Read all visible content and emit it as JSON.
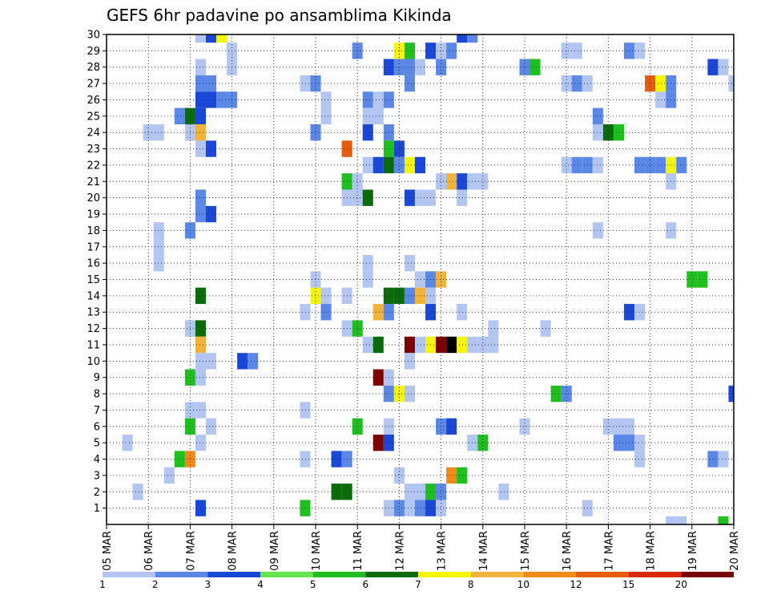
{
  "chart_data": {
    "type": "heatmap",
    "title": "GEFS 6hr padavine po ansamblima Kikinda",
    "xlabel": "",
    "ylabel": "",
    "x_ticks": [
      "05 MAR",
      "06 MAR",
      "07 MAR",
      "08 MAR",
      "09 MAR",
      "10 MAR",
      "11 MAR",
      "12 MAR",
      "13 MAR",
      "14 MAR",
      "15 MAR",
      "16 MAR",
      "17 MAR",
      "18 MAR",
      "19 MAR",
      "20 MAR"
    ],
    "y_ticks": [
      1,
      2,
      3,
      4,
      5,
      6,
      7,
      8,
      9,
      10,
      11,
      12,
      13,
      14,
      15,
      16,
      17,
      18,
      19,
      20,
      21,
      22,
      23,
      24,
      25,
      26,
      27,
      28,
      29,
      30
    ],
    "xlim_steps": [
      0,
      60
    ],
    "ylim": [
      0,
      30
    ],
    "grid": true,
    "colorbar": {
      "labels": [
        "1",
        "2",
        "3",
        "4",
        "5",
        "6",
        "7",
        "8",
        "10",
        "12",
        "15",
        "20"
      ],
      "colors": [
        "#b3c6f2",
        "#5b87e6",
        "#1a47d6",
        "#66e64d",
        "#1ebf1e",
        "#0a6b0a",
        "#f5f50a",
        "#f2b33d",
        "#f28a1a",
        "#e65c0a",
        "#d92b0a",
        "#7a0000"
      ]
    },
    "cells": [
      [
        9,
        30,
        1
      ],
      [
        10,
        30,
        3
      ],
      [
        11,
        30,
        7
      ],
      [
        34,
        30,
        3
      ],
      [
        35,
        30,
        2
      ],
      [
        12,
        29,
        1
      ],
      [
        24,
        29,
        2
      ],
      [
        28,
        29,
        7
      ],
      [
        29,
        29,
        5
      ],
      [
        31,
        29,
        3
      ],
      [
        32,
        29,
        1
      ],
      [
        33,
        29,
        2
      ],
      [
        44,
        29,
        1
      ],
      [
        45,
        29,
        1
      ],
      [
        50,
        29,
        2
      ],
      [
        51,
        29,
        1
      ],
      [
        9,
        28,
        1
      ],
      [
        12,
        28,
        1
      ],
      [
        27,
        28,
        3
      ],
      [
        28,
        28,
        2
      ],
      [
        29,
        28,
        2
      ],
      [
        30,
        28,
        1
      ],
      [
        32,
        28,
        2
      ],
      [
        40,
        28,
        2
      ],
      [
        41,
        28,
        5
      ],
      [
        58,
        28,
        3
      ],
      [
        59,
        28,
        1
      ],
      [
        9,
        27,
        2
      ],
      [
        10,
        27,
        2
      ],
      [
        19,
        27,
        1
      ],
      [
        20,
        27,
        2
      ],
      [
        29,
        27,
        2
      ],
      [
        44,
        27,
        1
      ],
      [
        45,
        27,
        2
      ],
      [
        46,
        27,
        1
      ],
      [
        52,
        27,
        10
      ],
      [
        53,
        27,
        7
      ],
      [
        54,
        27,
        2
      ],
      [
        60,
        27,
        1
      ],
      [
        9,
        26,
        3
      ],
      [
        10,
        26,
        3
      ],
      [
        11,
        26,
        2
      ],
      [
        12,
        26,
        2
      ],
      [
        21,
        26,
        1
      ],
      [
        25,
        26,
        2
      ],
      [
        26,
        26,
        1
      ],
      [
        27,
        26,
        2
      ],
      [
        53,
        26,
        1
      ],
      [
        54,
        26,
        2
      ],
      [
        7,
        25,
        2
      ],
      [
        8,
        25,
        6
      ],
      [
        9,
        25,
        3
      ],
      [
        21,
        25,
        1
      ],
      [
        25,
        25,
        1
      ],
      [
        26,
        25,
        1
      ],
      [
        47,
        25,
        2
      ],
      [
        4,
        24,
        1
      ],
      [
        5,
        24,
        1
      ],
      [
        8,
        24,
        1
      ],
      [
        9,
        24,
        8
      ],
      [
        20,
        24,
        2
      ],
      [
        25,
        24,
        3
      ],
      [
        27,
        24,
        2
      ],
      [
        47,
        24,
        1
      ],
      [
        48,
        24,
        6
      ],
      [
        49,
        24,
        5
      ],
      [
        9,
        23,
        1
      ],
      [
        10,
        23,
        3
      ],
      [
        23,
        23,
        10
      ],
      [
        27,
        23,
        5
      ],
      [
        28,
        23,
        3
      ],
      [
        25,
        22,
        1
      ],
      [
        26,
        22,
        3
      ],
      [
        27,
        22,
        6
      ],
      [
        28,
        22,
        2
      ],
      [
        29,
        22,
        7
      ],
      [
        30,
        22,
        3
      ],
      [
        44,
        22,
        1
      ],
      [
        45,
        22,
        2
      ],
      [
        46,
        22,
        2
      ],
      [
        47,
        22,
        1
      ],
      [
        51,
        22,
        2
      ],
      [
        52,
        22,
        2
      ],
      [
        53,
        22,
        2
      ],
      [
        54,
        22,
        7
      ],
      [
        55,
        22,
        2
      ],
      [
        23,
        21,
        5
      ],
      [
        24,
        21,
        1
      ],
      [
        32,
        21,
        1
      ],
      [
        33,
        21,
        8
      ],
      [
        34,
        21,
        3
      ],
      [
        35,
        21,
        1
      ],
      [
        36,
        21,
        1
      ],
      [
        54,
        21,
        1
      ],
      [
        9,
        20,
        2
      ],
      [
        23,
        20,
        1
      ],
      [
        24,
        20,
        1
      ],
      [
        25,
        20,
        6
      ],
      [
        29,
        20,
        3
      ],
      [
        30,
        20,
        1
      ],
      [
        31,
        20,
        1
      ],
      [
        34,
        20,
        1
      ],
      [
        9,
        19,
        2
      ],
      [
        10,
        19,
        3
      ],
      [
        5,
        18,
        1
      ],
      [
        8,
        18,
        2
      ],
      [
        47,
        18,
        1
      ],
      [
        54,
        18,
        1
      ],
      [
        5,
        17,
        1
      ],
      [
        5,
        16,
        1
      ],
      [
        25,
        16,
        1
      ],
      [
        29,
        16,
        1
      ],
      [
        20,
        15,
        1
      ],
      [
        25,
        15,
        1
      ],
      [
        30,
        15,
        1
      ],
      [
        31,
        15,
        2
      ],
      [
        32,
        15,
        8
      ],
      [
        56,
        15,
        5
      ],
      [
        57,
        15,
        5
      ],
      [
        9,
        14,
        6
      ],
      [
        20,
        14,
        7
      ],
      [
        21,
        14,
        1
      ],
      [
        23,
        14,
        1
      ],
      [
        27,
        14,
        6
      ],
      [
        28,
        14,
        6
      ],
      [
        29,
        14,
        2
      ],
      [
        30,
        14,
        8
      ],
      [
        31,
        14,
        1
      ],
      [
        19,
        13,
        1
      ],
      [
        21,
        13,
        2
      ],
      [
        26,
        13,
        8
      ],
      [
        27,
        13,
        2
      ],
      [
        31,
        13,
        3
      ],
      [
        34,
        13,
        1
      ],
      [
        50,
        13,
        3
      ],
      [
        51,
        13,
        1
      ],
      [
        8,
        12,
        1
      ],
      [
        9,
        12,
        6
      ],
      [
        23,
        12,
        1
      ],
      [
        24,
        12,
        5
      ],
      [
        37,
        12,
        1
      ],
      [
        42,
        12,
        1
      ],
      [
        9,
        11,
        8
      ],
      [
        25,
        11,
        1
      ],
      [
        26,
        11,
        6
      ],
      [
        29,
        11,
        12
      ],
      [
        30,
        11,
        1
      ],
      [
        31,
        11,
        7
      ],
      [
        32,
        11,
        12
      ],
      [
        33,
        11,
        20
      ],
      [
        34,
        11,
        7
      ],
      [
        35,
        11,
        1
      ],
      [
        36,
        11,
        1
      ],
      [
        37,
        11,
        1
      ],
      [
        9,
        10,
        1
      ],
      [
        10,
        10,
        1
      ],
      [
        13,
        10,
        3
      ],
      [
        14,
        10,
        2
      ],
      [
        29,
        10,
        1
      ],
      [
        8,
        9,
        5
      ],
      [
        9,
        9,
        1
      ],
      [
        26,
        9,
        12
      ],
      [
        27,
        9,
        1
      ],
      [
        27,
        8,
        2
      ],
      [
        28,
        8,
        7
      ],
      [
        29,
        8,
        1
      ],
      [
        43,
        8,
        5
      ],
      [
        44,
        8,
        2
      ],
      [
        60,
        8,
        3
      ],
      [
        8,
        7,
        1
      ],
      [
        9,
        7,
        1
      ],
      [
        19,
        7,
        1
      ],
      [
        8,
        6,
        5
      ],
      [
        10,
        6,
        1
      ],
      [
        24,
        6,
        5
      ],
      [
        27,
        6,
        1
      ],
      [
        32,
        6,
        2
      ],
      [
        33,
        6,
        3
      ],
      [
        40,
        6,
        1
      ],
      [
        48,
        6,
        1
      ],
      [
        49,
        6,
        1
      ],
      [
        50,
        6,
        1
      ],
      [
        2,
        5,
        1
      ],
      [
        9,
        5,
        1
      ],
      [
        26,
        5,
        12
      ],
      [
        27,
        5,
        3
      ],
      [
        35,
        5,
        1
      ],
      [
        36,
        5,
        5
      ],
      [
        49,
        5,
        2
      ],
      [
        50,
        5,
        2
      ],
      [
        51,
        5,
        1
      ],
      [
        7,
        4,
        5
      ],
      [
        8,
        4,
        9
      ],
      [
        19,
        4,
        1
      ],
      [
        22,
        4,
        3
      ],
      [
        23,
        4,
        2
      ],
      [
        51,
        4,
        1
      ],
      [
        58,
        4,
        2
      ],
      [
        59,
        4,
        1
      ],
      [
        6,
        3,
        1
      ],
      [
        28,
        3,
        1
      ],
      [
        33,
        3,
        9
      ],
      [
        34,
        3,
        5
      ],
      [
        3,
        2,
        1
      ],
      [
        22,
        2,
        6
      ],
      [
        23,
        2,
        6
      ],
      [
        29,
        2,
        1
      ],
      [
        30,
        2,
        1
      ],
      [
        31,
        2,
        5
      ],
      [
        32,
        2,
        2
      ],
      [
        38,
        2,
        1
      ],
      [
        9,
        1,
        3
      ],
      [
        19,
        1,
        5
      ],
      [
        27,
        1,
        1
      ],
      [
        28,
        1,
        2
      ],
      [
        29,
        1,
        1
      ],
      [
        30,
        1,
        2
      ],
      [
        31,
        1,
        3
      ],
      [
        32,
        1,
        1
      ],
      [
        46,
        1,
        1
      ],
      [
        54,
        0,
        1
      ],
      [
        55,
        0,
        1
      ],
      [
        59,
        0,
        5
      ]
    ]
  }
}
